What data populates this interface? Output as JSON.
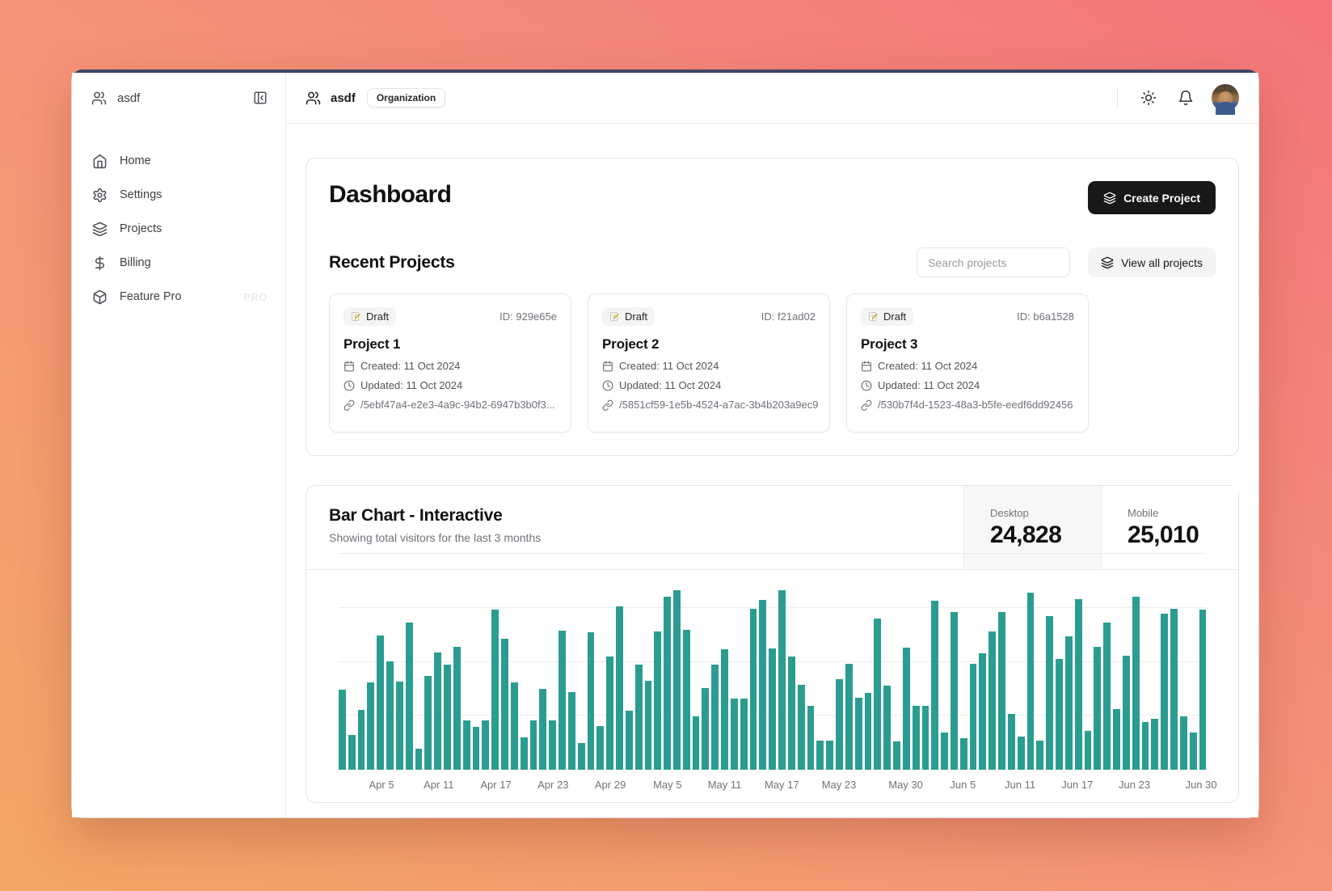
{
  "sidebar": {
    "user": "asdf",
    "items": [
      {
        "label": "Home",
        "icon": "home-icon"
      },
      {
        "label": "Settings",
        "icon": "settings-icon"
      },
      {
        "label": "Projects",
        "icon": "layers-icon"
      },
      {
        "label": "Billing",
        "icon": "dollar-icon"
      },
      {
        "label": "Feature Pro",
        "icon": "package-icon",
        "badge": "PRO"
      }
    ]
  },
  "topbar": {
    "org_name": "asdf",
    "org_badge": "Organization"
  },
  "dashboard": {
    "title": "Dashboard",
    "create_button": "Create Project",
    "recent_title": "Recent Projects",
    "search_placeholder": "Search projects",
    "view_all_button": "View all projects",
    "projects": [
      {
        "status": "Draft",
        "id_label": "ID: 929e65e",
        "name": "Project 1",
        "created": "Created: 11 Oct 2024",
        "updated": "Updated: 11 Oct 2024",
        "url": "/5ebf47a4-e2e3-4a9c-94b2-6947b3b0f3..."
      },
      {
        "status": "Draft",
        "id_label": "ID: f21ad02",
        "name": "Project 2",
        "created": "Created: 11 Oct 2024",
        "updated": "Updated: 11 Oct 2024",
        "url": "/5851cf59-1e5b-4524-a7ac-3b4b203a9ec9"
      },
      {
        "status": "Draft",
        "id_label": "ID: b6a1528",
        "name": "Project 3",
        "created": "Created: 11 Oct 2024",
        "updated": "Updated: 11 Oct 2024",
        "url": "/530b7f4d-1523-48a3-b5fe-eedf6dd92456"
      }
    ]
  },
  "chart_section": {
    "title": "Bar Chart - Interactive",
    "subtitle": "Showing total visitors for the last 3 months",
    "stats": [
      {
        "label": "Desktop",
        "value": "24,828",
        "active": true
      },
      {
        "label": "Mobile",
        "value": "25,010",
        "active": false
      }
    ]
  },
  "chart_data": {
    "type": "bar",
    "title": "Bar Chart - Interactive",
    "subtitle": "Showing total visitors for the last 3 months",
    "series_shown": "desktop",
    "bar_color": "#2a9d90",
    "x_start": "2024-04-01",
    "x_end": "2024-06-30",
    "values": [
      222,
      97,
      167,
      242,
      373,
      301,
      245,
      409,
      59,
      261,
      327,
      292,
      342,
      137,
      120,
      138,
      446,
      364,
      243,
      89,
      137,
      224,
      138,
      387,
      215,
      75,
      383,
      122,
      315,
      454,
      165,
      293,
      247,
      385,
      481,
      498,
      388,
      149,
      227,
      293,
      335,
      197,
      197,
      448,
      473,
      338,
      499,
      315,
      235,
      177,
      82,
      81,
      252,
      294,
      201,
      213,
      420,
      233,
      78,
      340,
      178,
      178,
      470,
      103,
      439,
      88,
      294,
      323,
      385,
      438,
      155,
      92,
      492,
      81,
      426,
      307,
      371,
      475,
      107,
      341,
      408,
      169,
      317,
      480,
      132,
      141,
      434,
      448,
      149,
      103,
      446
    ],
    "tick_labels": [
      "Apr 5",
      "Apr 11",
      "Apr 17",
      "Apr 23",
      "Apr 29",
      "May 5",
      "May 11",
      "May 17",
      "May 23",
      "May 30",
      "Jun 5",
      "Jun 11",
      "Jun 17",
      "Jun 23",
      "Jun 30"
    ],
    "tick_indexes": [
      4,
      10,
      16,
      22,
      28,
      34,
      40,
      46,
      52,
      59,
      65,
      71,
      77,
      83,
      90
    ],
    "ylim": [
      0,
      600
    ],
    "gridline_values": [
      150,
      300,
      450,
      600
    ],
    "grid": "horizontal-only",
    "legend": "none",
    "totals": {
      "desktop": 24828,
      "mobile": 25010
    }
  },
  "colors": {
    "bar_teal": "#2a9d90",
    "text_primary": "#111113",
    "text_muted": "#71717a",
    "border": "#e4e4e7",
    "button_dark": "#18181b",
    "badge_bg": "#f4f4f5",
    "window_top_border": "#3d4566",
    "bg_gradient_start": "#f2a765",
    "bg_gradient_end": "#f4757b"
  }
}
